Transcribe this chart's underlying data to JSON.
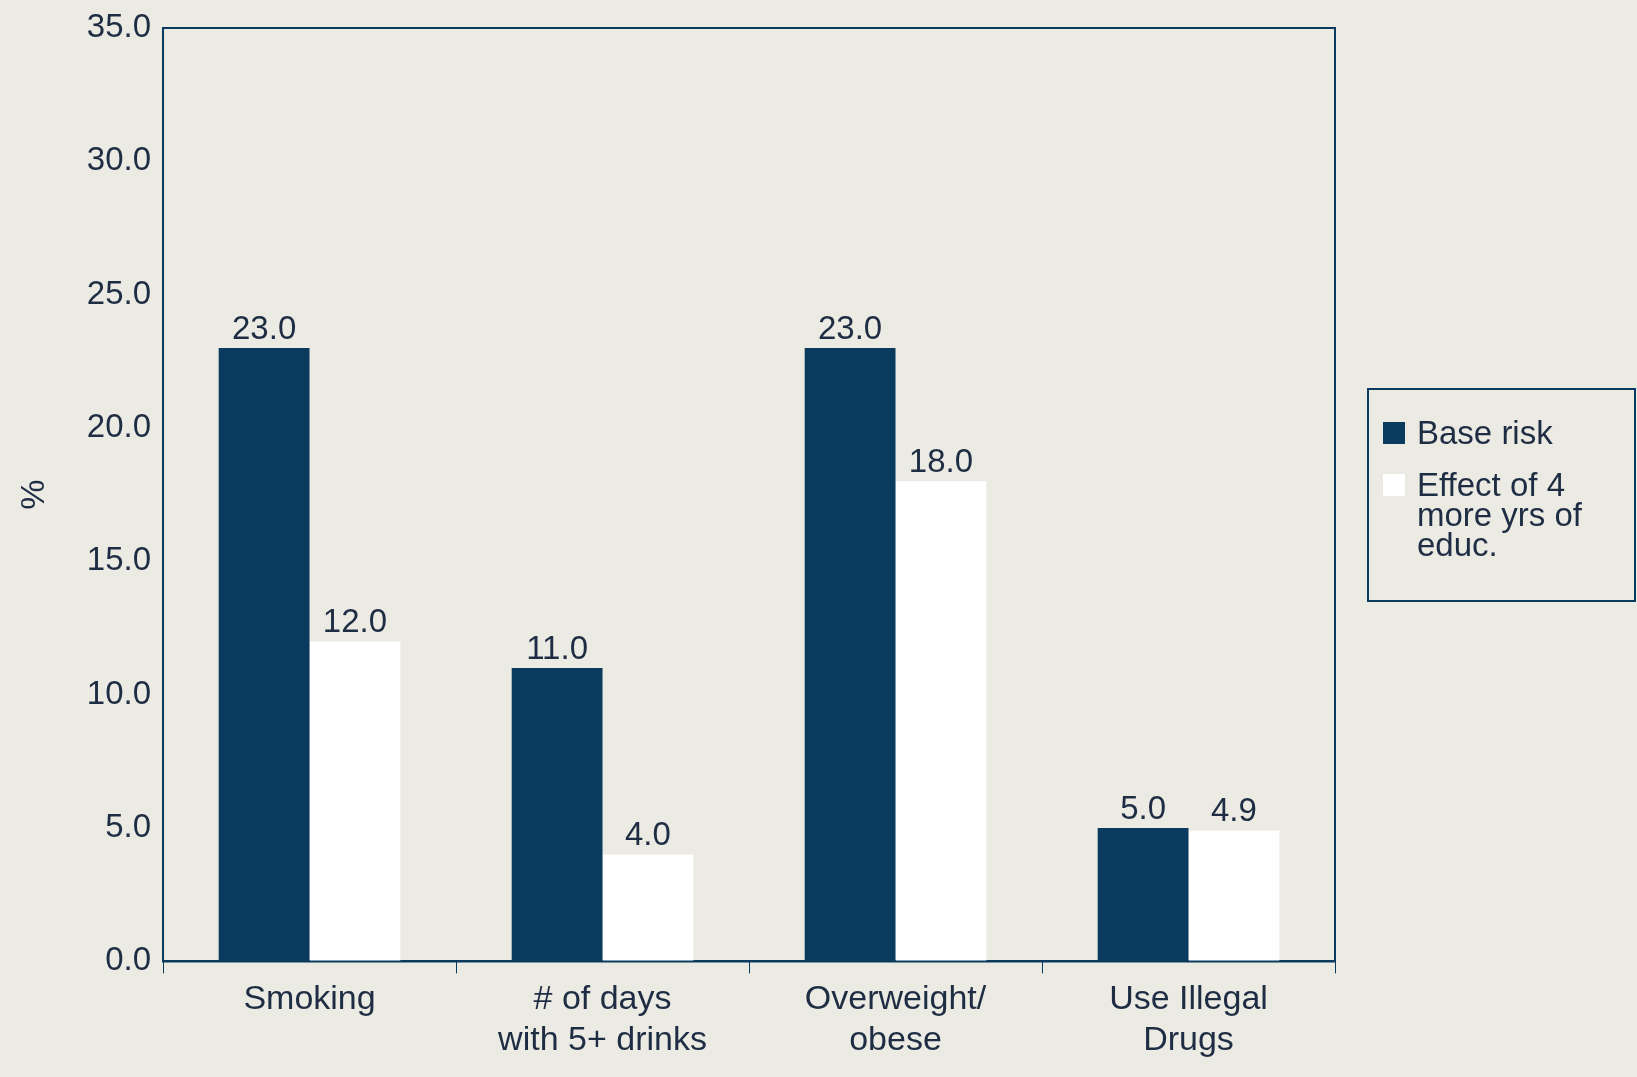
{
  "chart_data": {
    "type": "bar",
    "ylabel": "%",
    "categories": [
      "Smoking",
      "# of days\nwith 5+ drinks",
      "Overweight/\nobese",
      "Use Illegal\nDrugs"
    ],
    "series": [
      {
        "name": "Base risk",
        "color": "#0b3a5f",
        "values": [
          23.0,
          11.0,
          23.0,
          5.0
        ],
        "value_labels": [
          "23.0",
          "11.0",
          "23.0",
          "5.0"
        ]
      },
      {
        "name": "Effect of 4 more yrs of educ.",
        "color": "#ffffff",
        "values": [
          12.0,
          4.0,
          18.0,
          4.9
        ],
        "value_labels": [
          "12.0",
          "4.0",
          "18.0",
          "4.9"
        ]
      }
    ],
    "ylim": [
      0,
      35
    ],
    "yticks": [
      {
        "value": 0,
        "label": "0.0"
      },
      {
        "value": 5,
        "label": "5.0"
      },
      {
        "value": 10,
        "label": "10.0"
      },
      {
        "value": 15,
        "label": "15.0"
      },
      {
        "value": 20,
        "label": "20.0"
      },
      {
        "value": 25,
        "label": "25.0"
      },
      {
        "value": 30,
        "label": "30.0"
      },
      {
        "value": 35,
        "label": "35.0"
      }
    ],
    "grid": false,
    "legend": "right"
  }
}
